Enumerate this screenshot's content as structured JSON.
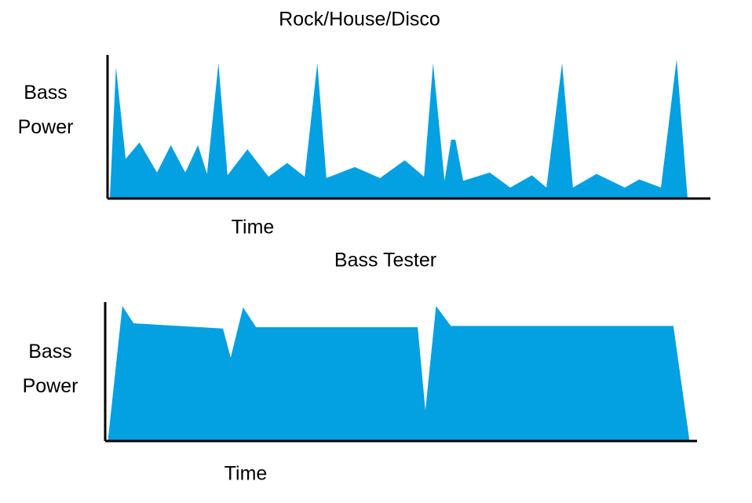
{
  "chart_data": [
    {
      "type": "area",
      "title": "Rock/House/Disco",
      "x_label": "Time",
      "y_label": "Bass Power",
      "color": "#03a0e2",
      "xlim": [
        0,
        100
      ],
      "ylim": [
        0,
        105
      ],
      "x": [
        0.4,
        1.4,
        3.0,
        5.3,
        8.2,
        10.5,
        12.9,
        15.0,
        16.5,
        18.4,
        19.9,
        23.2,
        26.7,
        29.8,
        32.7,
        34.8,
        36.3,
        41.0,
        45.2,
        49.3,
        52.5,
        54.0,
        55.9,
        57.0,
        57.7,
        59.0,
        63.4,
        66.8,
        70.4,
        72.8,
        75.4,
        77.2,
        81.1,
        85.8,
        88.2,
        91.8,
        94.4,
        96.2
      ],
      "values": [
        2,
        96,
        29,
        41,
        19,
        39,
        19,
        39,
        18,
        99,
        17,
        36,
        16,
        26,
        16,
        99,
        15,
        23,
        15,
        28,
        16,
        99,
        13,
        43,
        43,
        13,
        19,
        8,
        17,
        8,
        99,
        8,
        18,
        8,
        14,
        8,
        102,
        1
      ]
    },
    {
      "type": "area",
      "title": "Bass Tester",
      "x_label": "Time",
      "y_label": "Bass Power",
      "color": "#03a0e2",
      "xlim": [
        0,
        100
      ],
      "ylim": [
        0,
        105
      ],
      "x": [
        0.5,
        2.9,
        4.8,
        19.9,
        21.2,
        23.3,
        25.5,
        52.8,
        54.1,
        55.9,
        58.4,
        96.0,
        98.7
      ],
      "values": [
        2,
        102,
        89,
        85,
        63,
        101,
        86,
        86,
        23,
        102,
        87,
        87,
        1
      ]
    }
  ]
}
